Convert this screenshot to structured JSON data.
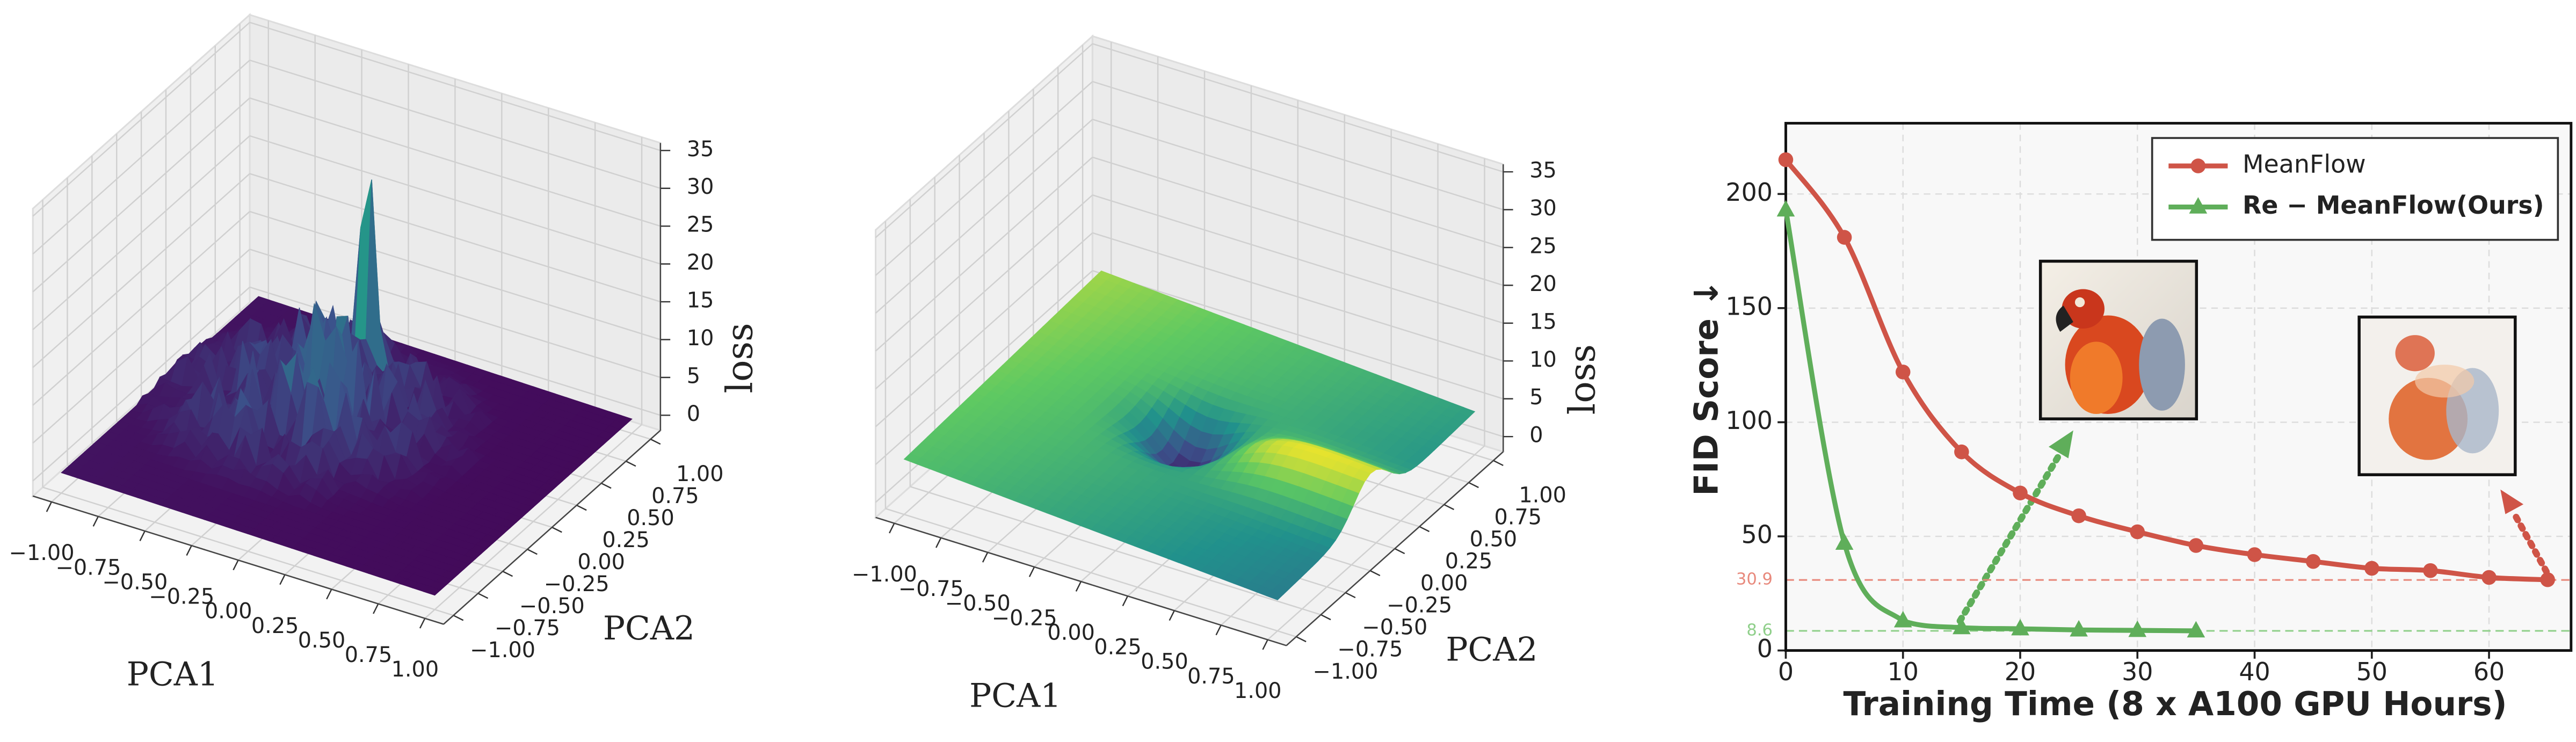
{
  "chart_data": [
    {
      "type": "surface3d",
      "colormap": "viridis",
      "xlabel": "PCA1",
      "ylabel": "PCA2",
      "zlabel": "loss",
      "xlim": [
        -1.1,
        1.1
      ],
      "ylim": [
        -1.1,
        1.1
      ],
      "zlim": [
        -2,
        36
      ],
      "xticks": [
        {
          "value": -1,
          "label": "−1.00"
        },
        {
          "value": -0.75,
          "label": "−0.75"
        },
        {
          "value": -0.5,
          "label": "−0.50"
        },
        {
          "value": -0.25,
          "label": "−0.25"
        },
        {
          "value": 0,
          "label": "0.00"
        },
        {
          "value": 0.25,
          "label": "0.25"
        },
        {
          "value": 0.5,
          "label": "0.50"
        },
        {
          "value": 0.75,
          "label": "0.75"
        },
        {
          "value": 1,
          "label": "1.00"
        }
      ],
      "yticks": [
        {
          "value": -1,
          "label": "−1.00"
        },
        {
          "value": -0.75,
          "label": "−0.75"
        },
        {
          "value": -0.5,
          "label": "−0.50"
        },
        {
          "value": -0.25,
          "label": "−0.25"
        },
        {
          "value": 0,
          "label": "0.00"
        },
        {
          "value": 0.25,
          "label": "0.25"
        },
        {
          "value": 0.5,
          "label": "0.50"
        },
        {
          "value": 0.75,
          "label": "0.75"
        },
        {
          "value": 1,
          "label": "1.00"
        }
      ],
      "zticks": [
        0,
        5,
        10,
        15,
        20,
        25,
        30,
        35
      ]
    },
    {
      "type": "surface3d",
      "colormap": "viridis",
      "xlabel": "PCA1",
      "ylabel": "PCA2",
      "zlabel": "loss",
      "xlim": [
        -1.1,
        1.1
      ],
      "ylim": [
        -1.1,
        1.1
      ],
      "zlim": [
        -2,
        36
      ],
      "xticks": [
        {
          "value": -1,
          "label": "−1.00"
        },
        {
          "value": -0.75,
          "label": "−0.75"
        },
        {
          "value": -0.5,
          "label": "−0.50"
        },
        {
          "value": -0.25,
          "label": "−0.25"
        },
        {
          "value": 0,
          "label": "0.00"
        },
        {
          "value": 0.25,
          "label": "0.25"
        },
        {
          "value": 0.5,
          "label": "0.50"
        },
        {
          "value": 0.75,
          "label": "0.75"
        },
        {
          "value": 1,
          "label": "1.00"
        }
      ],
      "yticks": [
        {
          "value": -1,
          "label": "−1.00"
        },
        {
          "value": -0.75,
          "label": "−0.75"
        },
        {
          "value": -0.5,
          "label": "−0.50"
        },
        {
          "value": -0.25,
          "label": "−0.25"
        },
        {
          "value": 0,
          "label": "0.00"
        },
        {
          "value": 0.25,
          "label": "0.25"
        },
        {
          "value": 0.5,
          "label": "0.50"
        },
        {
          "value": 0.75,
          "label": "0.75"
        },
        {
          "value": 1,
          "label": "1.00"
        }
      ],
      "zticks": [
        0,
        5,
        10,
        15,
        20,
        25,
        30,
        35
      ]
    },
    {
      "type": "line",
      "xlabel": "Training Time (8 x A100 GPU Hours)",
      "ylabel": "FID Score ↓",
      "xlim": [
        0,
        67
      ],
      "ylim": [
        0,
        231
      ],
      "xticks": [
        0,
        10,
        20,
        30,
        40,
        50,
        60
      ],
      "yticks": [
        0,
        50,
        100,
        150,
        200
      ],
      "grid": true,
      "legend": "upper right",
      "series": [
        {
          "name": "MeanFlow",
          "color": "#cf5447",
          "marker": "circle",
          "x": [
            0,
            5,
            10,
            15,
            20,
            25,
            30,
            35,
            40,
            45,
            50,
            55,
            60,
            65
          ],
          "values": [
            215,
            181,
            122,
            87,
            69,
            59,
            52,
            46,
            42,
            39,
            36,
            35,
            32,
            31
          ]
        },
        {
          "name": "Re − MeanFlow(Ours)",
          "color": "#5fae5a",
          "marker": "triangle",
          "x": [
            0,
            5,
            10,
            15,
            20,
            25,
            30,
            35
          ],
          "values": [
            193,
            47,
            13,
            10,
            9.5,
            9,
            8.8,
            8.6
          ]
        }
      ],
      "reference_lines": [
        {
          "value": 30.9,
          "color": "#e8897c"
        },
        {
          "value": 8.6,
          "color": "#8fcf8a"
        }
      ]
    }
  ]
}
